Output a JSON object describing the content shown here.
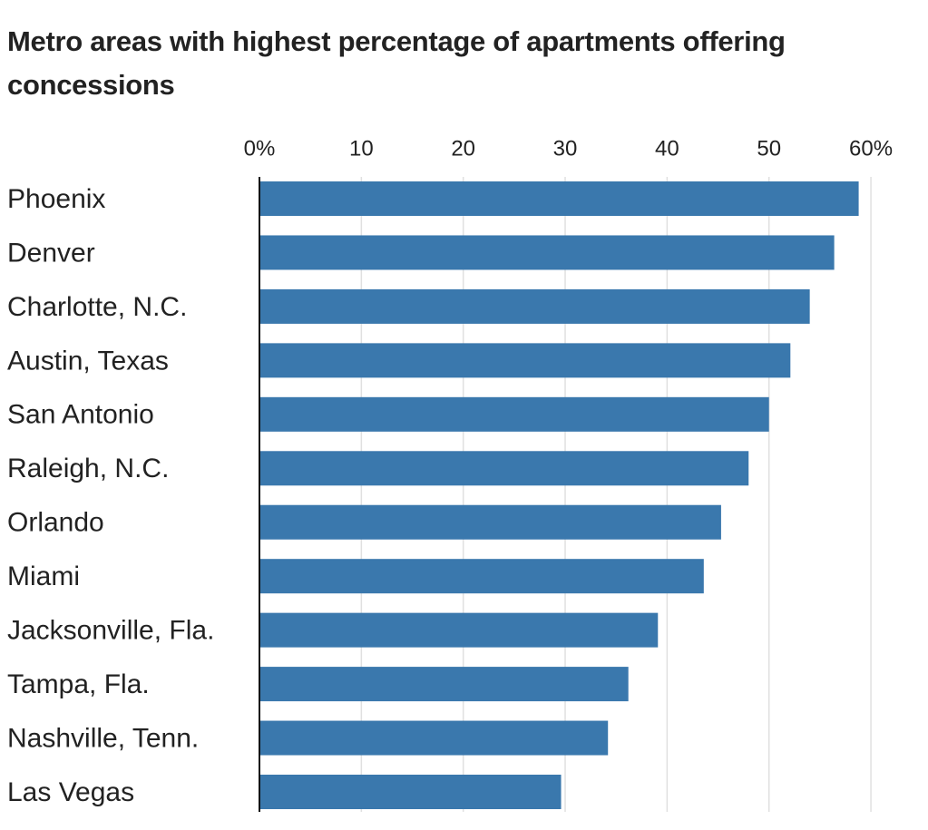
{
  "chart_data": {
    "type": "bar",
    "orientation": "horizontal",
    "title": "Metro areas with highest percentage of apartments offering concessions",
    "categories": [
      "Phoenix",
      "Denver",
      "Charlotte, N.C.",
      "Austin, Texas",
      "San Antonio",
      "Raleigh, N.C.",
      "Orlando",
      "Miami",
      "Jacksonville, Fla.",
      "Tampa, Fla.",
      "Nashville, Tenn.",
      "Las Vegas"
    ],
    "values": [
      58.8,
      56.4,
      54.0,
      52.1,
      50.0,
      48.0,
      45.3,
      43.6,
      39.1,
      36.2,
      34.2,
      29.6
    ],
    "color": "#3a78ad",
    "xlim": [
      0,
      64
    ],
    "xticks": [
      {
        "value": 0,
        "label": "0%"
      },
      10,
      20,
      30,
      40,
      50,
      {
        "value": 60,
        "label": "60%"
      }
    ],
    "grid": true
  }
}
